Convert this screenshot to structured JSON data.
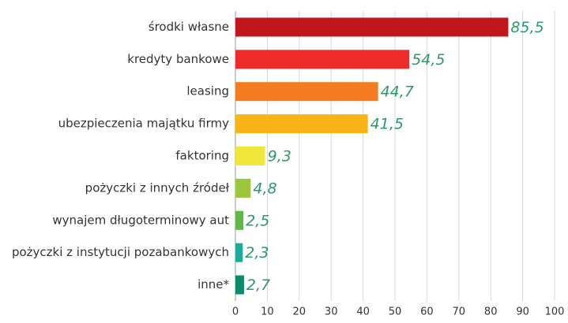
{
  "chart_data": {
    "type": "bar",
    "orientation": "horizontal",
    "categories": [
      "środki własne",
      "kredyty bankowe",
      "leasing",
      "ubezpieczenia majątku firmy",
      "faktoring",
      "pożyczki z innych źródeł",
      "wynajem długoterminowy aut",
      "pożyczki z instytucji pozabankowych",
      "inne*"
    ],
    "values": [
      85.5,
      54.5,
      44.7,
      41.5,
      9.3,
      4.8,
      2.5,
      2.3,
      2.7
    ],
    "value_labels": [
      "85,5",
      "54,5",
      "44,7",
      "41,5",
      "9,3",
      "4,8",
      "2,5",
      "2,3",
      "2,7"
    ],
    "colors": [
      "#c1161c",
      "#ee2b2b",
      "#f47c20",
      "#fab417",
      "#efe83a",
      "#9cc63c",
      "#62b846",
      "#1eaa98",
      "#0d8a6c"
    ],
    "xlim": [
      0,
      100
    ],
    "xticks": [
      0,
      10,
      20,
      30,
      40,
      50,
      60,
      70,
      80,
      90,
      100
    ],
    "grid": true
  }
}
